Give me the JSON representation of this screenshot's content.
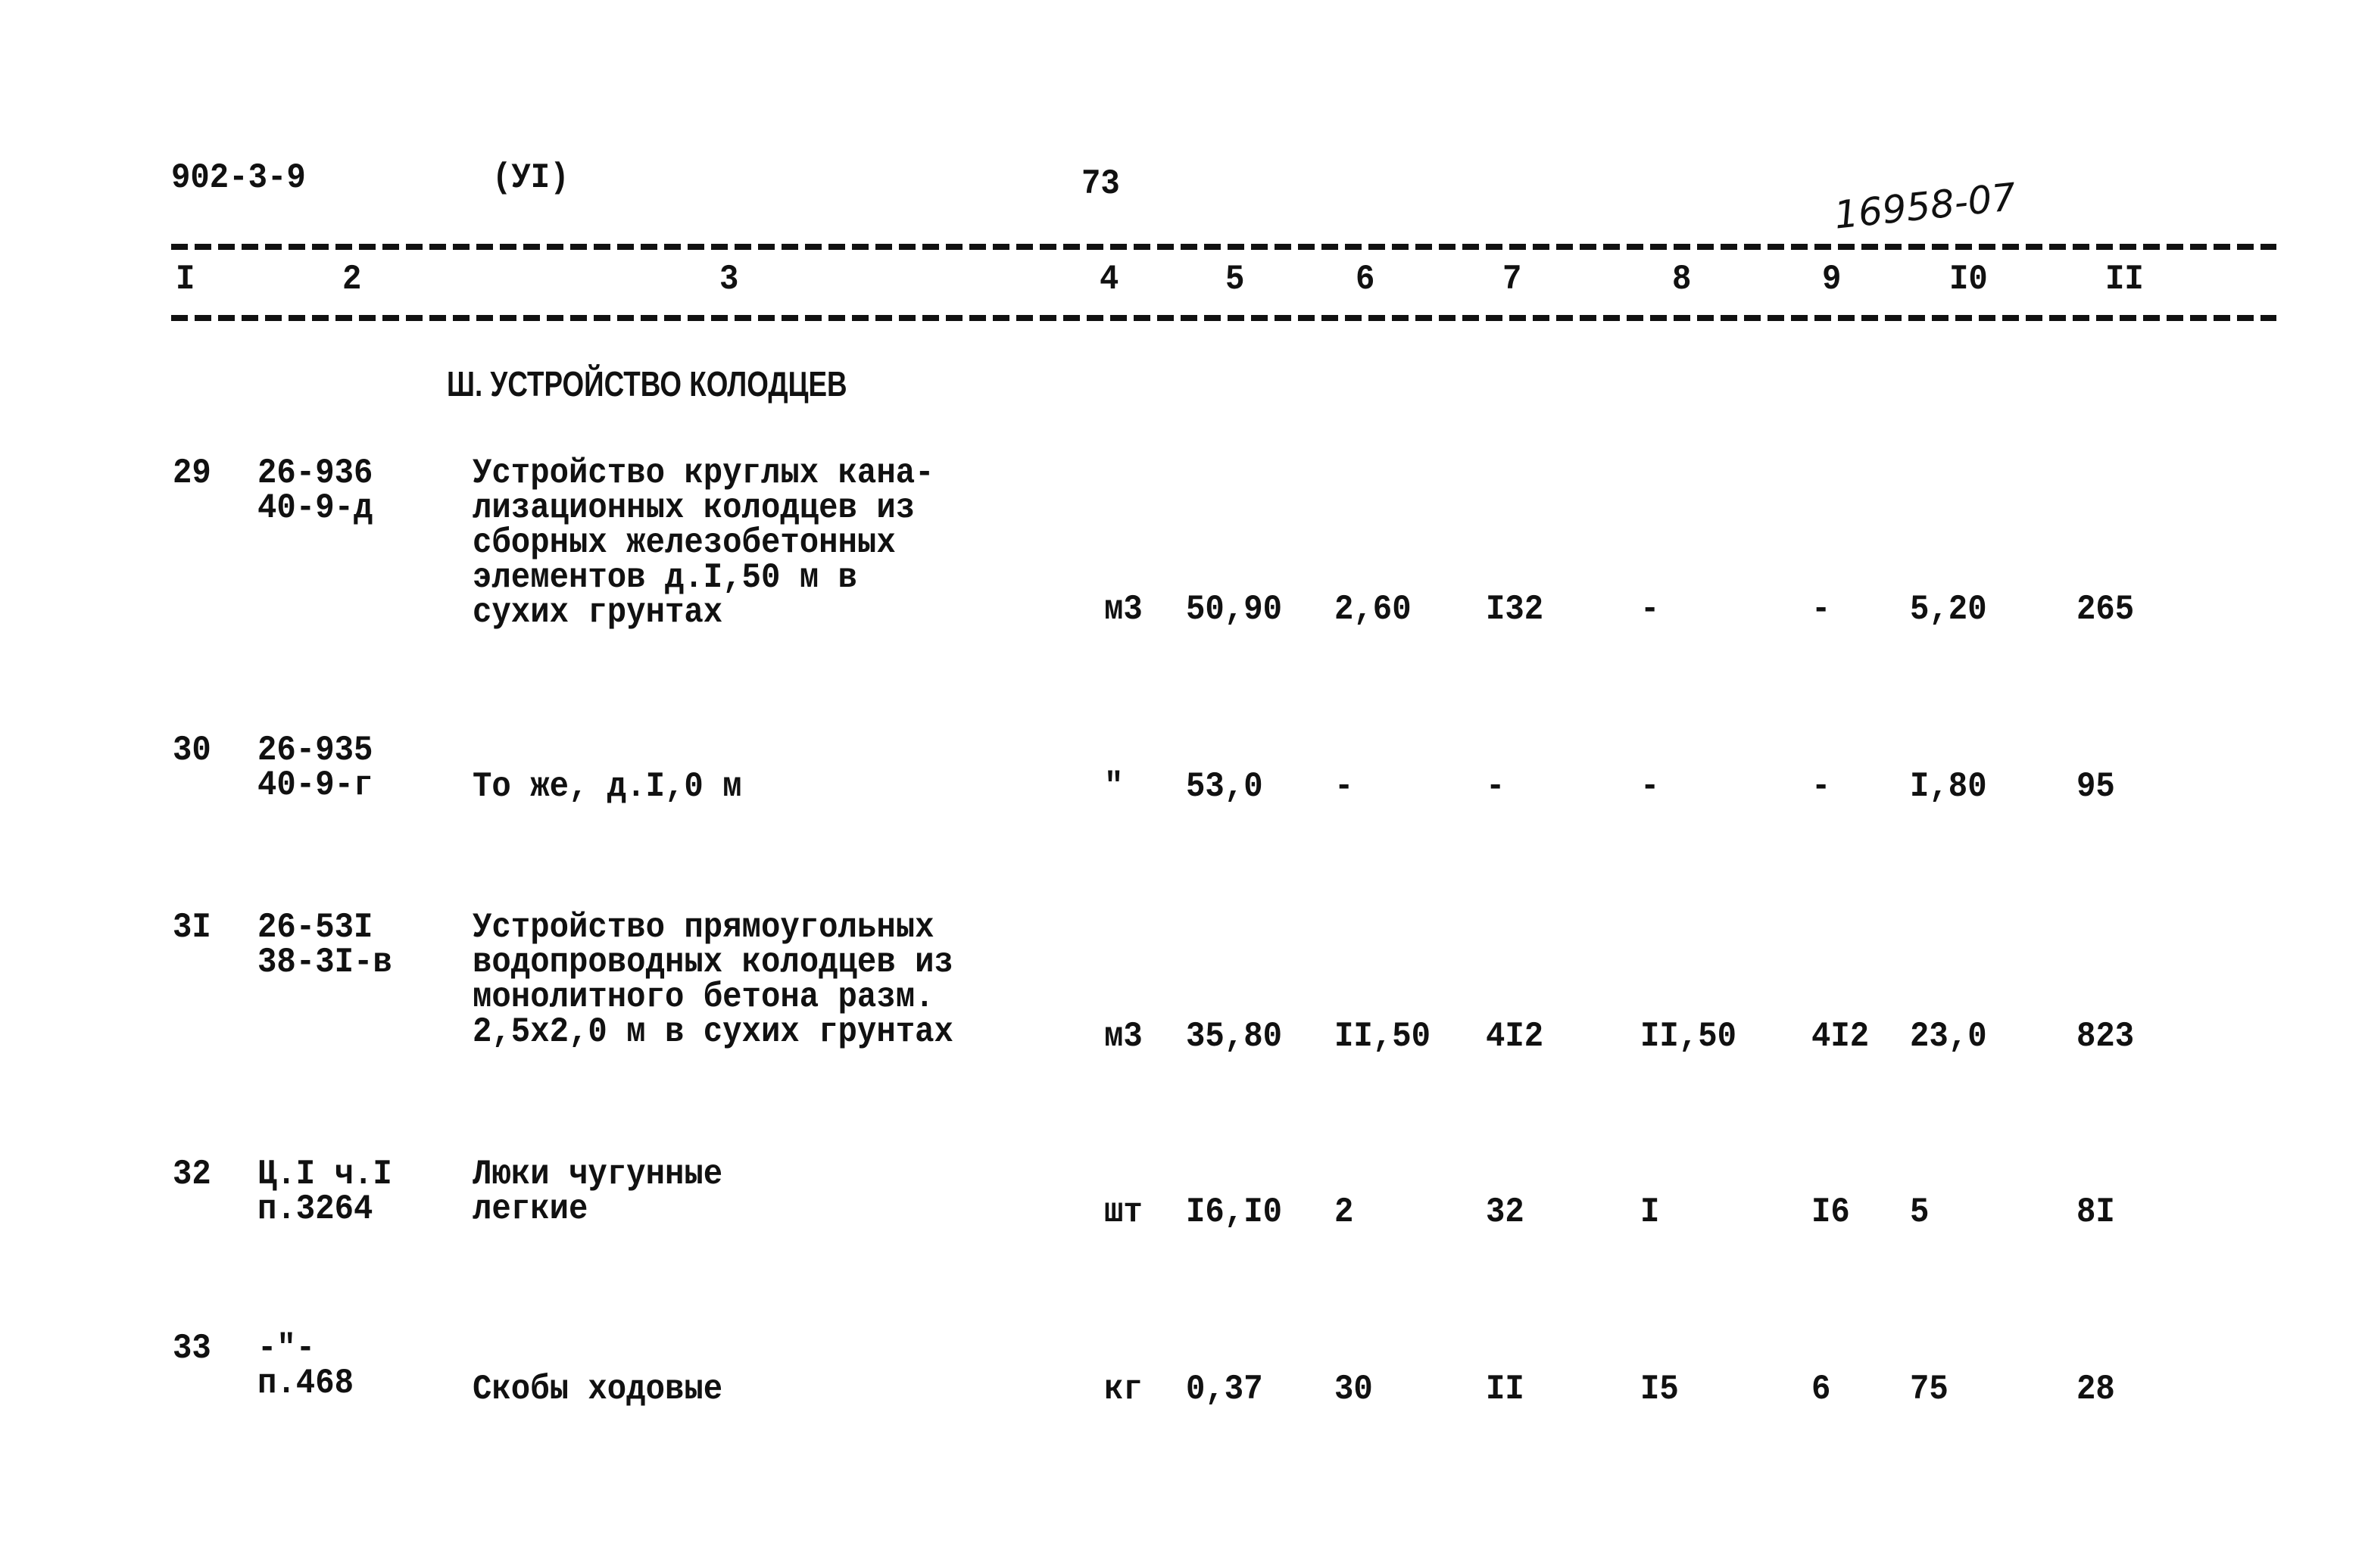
{
  "header": {
    "doc_code": "902-3-9",
    "volume": "(УI)",
    "page_number": "73",
    "handwritten_number": "16958-07"
  },
  "column_numbers": [
    "I",
    "2",
    "3",
    "4",
    "5",
    "6",
    "7",
    "8",
    "9",
    "I0",
    "II"
  ],
  "section_title": "Ш. УСТРОЙСТВО КОЛОДЦЕВ",
  "rows": [
    {
      "num": "29",
      "ref": [
        "26-936",
        "40-9-д"
      ],
      "desc": [
        "Устройство круглых кана-",
        "лизационных колодцев из",
        "сборных железобетонных",
        "элементов д.I,50 м в",
        "сухих грунтах"
      ],
      "unit": "м3",
      "c5": "50,90",
      "c6": "2,60",
      "c7": "I32",
      "c8": "-",
      "c9": "-",
      "c10": "5,20",
      "c11": "265"
    },
    {
      "num": "30",
      "ref": [
        "26-935",
        "40-9-г"
      ],
      "desc": [
        "То же, д.I,0 м"
      ],
      "unit": "\"",
      "c5": "53,0",
      "c6": "-",
      "c7": "-",
      "c8": "-",
      "c9": "-",
      "c10": "I,80",
      "c11": "95"
    },
    {
      "num": "3I",
      "ref": [
        "26-53I",
        "38-3I-в"
      ],
      "desc": [
        "Устройство прямоугольных",
        "водопроводных колодцев из",
        "монолитного бетона разм.",
        "2,5х2,0 м в сухих грунтах"
      ],
      "unit": "м3",
      "c5": "35,80",
      "c6": "II,50",
      "c7": "4I2",
      "c8": "II,50",
      "c9": "4I2",
      "c10": "23,0",
      "c11": "823"
    },
    {
      "num": "32",
      "ref": [
        "Ц.I ч.I",
        "п.3264"
      ],
      "desc": [
        "Люки чугунные",
        "легкие"
      ],
      "unit": "шт",
      "c5": "I6,I0",
      "c6": "2",
      "c7": "32",
      "c8": "I",
      "c9": "I6",
      "c10": "5",
      "c11": "8I"
    },
    {
      "num": "33",
      "ref": [
        "-\"-",
        "п.468"
      ],
      "desc": [
        "Скобы ходовые"
      ],
      "unit": "кг",
      "c5": "0,37",
      "c6": "30",
      "c7": "II",
      "c8": "I5",
      "c9": "6",
      "c10": "75",
      "c11": "28"
    }
  ]
}
